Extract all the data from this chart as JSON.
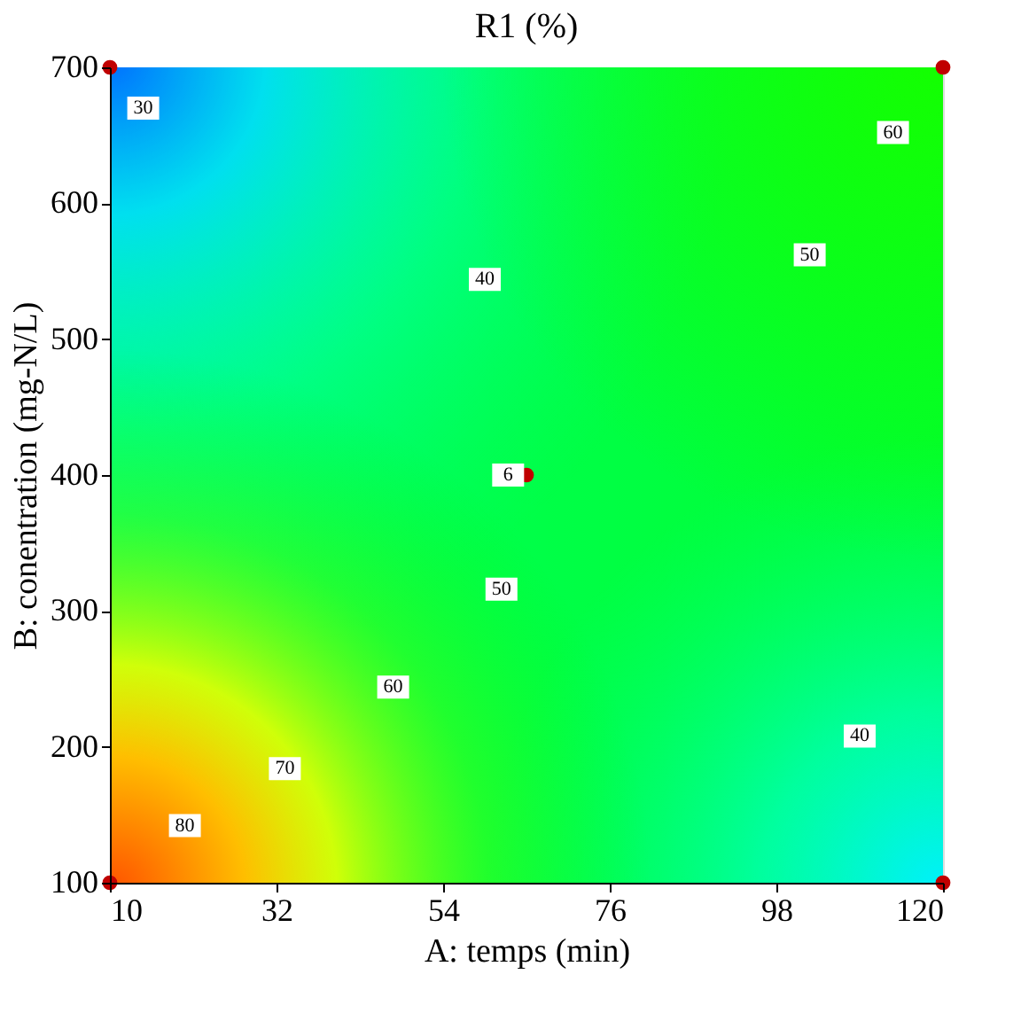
{
  "chart_data": {
    "type": "scatter",
    "title": "R1 (%)",
    "xlabel": "A: temps (min)",
    "ylabel": "B: conentration (mg-N/L)",
    "x": [
      10,
      10,
      120,
      120,
      65
    ],
    "values": [
      100,
      700,
      100,
      700,
      400
    ],
    "color": "#c00000",
    "marker": "circle",
    "xlim": [
      10,
      120
    ],
    "xticks": [
      10,
      32,
      54,
      76,
      98,
      120
    ],
    "ylim": [
      100,
      700
    ],
    "yticks": [
      100,
      200,
      300,
      400,
      500,
      600,
      700
    ],
    "annotations": [
      "30",
      "40",
      "50",
      "60",
      "50",
      "60",
      "70",
      "80",
      "40",
      "6"
    ]
  }
}
